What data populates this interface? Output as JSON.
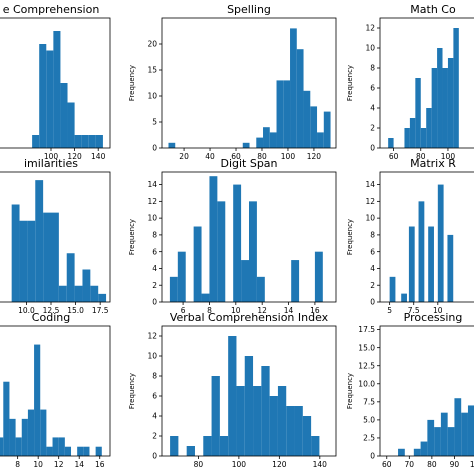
{
  "chart_data": [
    {
      "type": "bar",
      "title": "e Comprehension",
      "ylabel": "",
      "xlim": [
        50,
        150
      ],
      "ylim": [
        0,
        20
      ],
      "xticks": [
        {
          "v": 100,
          "l": "100"
        },
        {
          "v": 120,
          "l": "120"
        },
        {
          "v": 140,
          "l": "140"
        }
      ],
      "yticks": [],
      "bins": [
        [
          84,
          90,
          2
        ],
        [
          90,
          96,
          16
        ],
        [
          96,
          102,
          15
        ],
        [
          102,
          108,
          18
        ],
        [
          108,
          114,
          10
        ],
        [
          114,
          120,
          7
        ],
        [
          120,
          126,
          2
        ],
        [
          126,
          132,
          2
        ],
        [
          132,
          138,
          2
        ],
        [
          138,
          144,
          2
        ]
      ]
    },
    {
      "type": "bar",
      "title": "Spelling",
      "ylabel": "Frequency",
      "xlim": [
        3,
        137
      ],
      "ylim": [
        0,
        25
      ],
      "xticks": [
        {
          "v": 20,
          "l": "20"
        },
        {
          "v": 40,
          "l": "40"
        },
        {
          "v": 60,
          "l": "60"
        },
        {
          "v": 80,
          "l": "80"
        },
        {
          "v": 100,
          "l": "100"
        },
        {
          "v": 120,
          "l": "120"
        }
      ],
      "yticks": [
        {
          "v": 0,
          "l": "0"
        },
        {
          "v": 5,
          "l": "5"
        },
        {
          "v": 10,
          "l": "10"
        },
        {
          "v": 15,
          "l": "15"
        },
        {
          "v": 20,
          "l": "20"
        }
      ],
      "bins": [
        [
          8,
          13.2,
          1
        ],
        [
          65.2,
          70.4,
          1
        ],
        [
          75.6,
          80.8,
          2
        ],
        [
          80.8,
          86,
          4
        ],
        [
          86,
          91.2,
          3
        ],
        [
          91.2,
          96.4,
          13
        ],
        [
          96.4,
          101.6,
          13
        ],
        [
          101.6,
          106.8,
          23
        ],
        [
          106.8,
          112,
          19
        ],
        [
          112,
          117.2,
          11
        ],
        [
          117.2,
          122.4,
          8
        ],
        [
          122.4,
          127.6,
          3
        ],
        [
          127.6,
          132.8,
          7
        ]
      ]
    },
    {
      "type": "bar",
      "title": "Math Co",
      "ylabel": "Frequency",
      "xlim": [
        50,
        128
      ],
      "ylim": [
        0,
        13
      ],
      "xticks": [
        {
          "v": 60,
          "l": "60"
        },
        {
          "v": 80,
          "l": "80"
        },
        {
          "v": 100,
          "l": "100"
        }
      ],
      "yticks": [
        {
          "v": 0,
          "l": "0"
        },
        {
          "v": 2,
          "l": "2"
        },
        {
          "v": 4,
          "l": "4"
        },
        {
          "v": 6,
          "l": "6"
        },
        {
          "v": 8,
          "l": "8"
        },
        {
          "v": 10,
          "l": "10"
        },
        {
          "v": 12,
          "l": "12"
        }
      ],
      "bins": [
        [
          56,
          60,
          1
        ],
        [
          68,
          72,
          2
        ],
        [
          72,
          76,
          3
        ],
        [
          76,
          80,
          7
        ],
        [
          80,
          84,
          2
        ],
        [
          84,
          88,
          4
        ],
        [
          88,
          92,
          8
        ],
        [
          92,
          96,
          10
        ],
        [
          96,
          100,
          8
        ],
        [
          100,
          104,
          9
        ],
        [
          104,
          108,
          12
        ]
      ]
    },
    {
      "type": "bar",
      "title": "imilarities",
      "ylabel": "",
      "xlim": [
        6.5,
        18.5
      ],
      "ylim": [
        0,
        16
      ],
      "xticks": [
        {
          "v": 10,
          "l": "10.0"
        },
        {
          "v": 12.5,
          "l": "12.5"
        },
        {
          "v": 15,
          "l": "15.0"
        },
        {
          "v": 17.5,
          "l": "17.5"
        }
      ],
      "yticks": [],
      "bins": [
        [
          8.5,
          9.3,
          12
        ],
        [
          9.3,
          10.1,
          10
        ],
        [
          10.1,
          10.9,
          10
        ],
        [
          10.9,
          11.7,
          15
        ],
        [
          11.7,
          12.5,
          11
        ],
        [
          12.5,
          13.3,
          11
        ],
        [
          13.3,
          14.1,
          2
        ],
        [
          14.1,
          14.9,
          6
        ],
        [
          14.9,
          15.7,
          2
        ],
        [
          15.7,
          16.5,
          4
        ],
        [
          16.5,
          17.3,
          2
        ],
        [
          17.3,
          18.1,
          1
        ]
      ]
    },
    {
      "type": "bar",
      "title": "Digit Span",
      "ylabel": "Frequency",
      "xlim": [
        4.4,
        17.6
      ],
      "ylim": [
        0,
        15.5
      ],
      "xticks": [
        {
          "v": 6,
          "l": "6"
        },
        {
          "v": 8,
          "l": "8"
        },
        {
          "v": 10,
          "l": "10"
        },
        {
          "v": 12,
          "l": "12"
        },
        {
          "v": 14,
          "l": "14"
        },
        {
          "v": 16,
          "l": "16"
        }
      ],
      "yticks": [
        {
          "v": 0,
          "l": "0"
        },
        {
          "v": 2,
          "l": "2"
        },
        {
          "v": 4,
          "l": "4"
        },
        {
          "v": 6,
          "l": "6"
        },
        {
          "v": 8,
          "l": "8"
        },
        {
          "v": 10,
          "l": "10"
        },
        {
          "v": 12,
          "l": "12"
        },
        {
          "v": 14,
          "l": "14"
        }
      ],
      "bins": [
        [
          5,
          5.6,
          3
        ],
        [
          5.6,
          6.2,
          6
        ],
        [
          6.8,
          7.4,
          9
        ],
        [
          7.4,
          8,
          1
        ],
        [
          8,
          8.6,
          15
        ],
        [
          8.6,
          9.2,
          12
        ],
        [
          9.8,
          10.4,
          14
        ],
        [
          10.4,
          11,
          5
        ],
        [
          11,
          11.6,
          12
        ],
        [
          11.6,
          12.2,
          3
        ],
        [
          14.2,
          14.8,
          5
        ],
        [
          14.8,
          15.4,
          0
        ],
        [
          15.4,
          16,
          0
        ],
        [
          16,
          16.6,
          6
        ]
      ]
    },
    {
      "type": "bar",
      "title": "Matrix R",
      "ylabel": "Frequency",
      "xlim": [
        4,
        15
      ],
      "ylim": [
        0,
        15.5
      ],
      "xticks": [
        {
          "v": 5,
          "l": "5"
        },
        {
          "v": 7.5,
          "l": "7.5"
        },
        {
          "v": 10,
          "l": "10"
        }
      ],
      "yticks": [
        {
          "v": 0,
          "l": "0"
        },
        {
          "v": 2,
          "l": "2"
        },
        {
          "v": 4,
          "l": "4"
        },
        {
          "v": 6,
          "l": "6"
        },
        {
          "v": 8,
          "l": "8"
        },
        {
          "v": 10,
          "l": "10"
        },
        {
          "v": 12,
          "l": "12"
        },
        {
          "v": 14,
          "l": "14"
        }
      ],
      "bins": [
        [
          5,
          5.6,
          3
        ],
        [
          6.2,
          6.8,
          1
        ],
        [
          7,
          7.6,
          9
        ],
        [
          8,
          8.6,
          12
        ],
        [
          9,
          9.6,
          9
        ],
        [
          10,
          10.6,
          14
        ],
        [
          11,
          11.6,
          8
        ]
      ]
    },
    {
      "type": "bar",
      "title": "Coding",
      "ylabel": "",
      "xlim": [
        5.5,
        17
      ],
      "ylim": [
        0,
        14
      ],
      "xticks": [
        {
          "v": 8,
          "l": "8"
        },
        {
          "v": 10,
          "l": "10"
        },
        {
          "v": 12,
          "l": "12"
        },
        {
          "v": 14,
          "l": "14"
        },
        {
          "v": 16,
          "l": "16"
        }
      ],
      "yticks": [],
      "bins": [
        [
          6,
          6.6,
          2
        ],
        [
          6.6,
          7.2,
          8
        ],
        [
          7.2,
          7.8,
          4
        ],
        [
          7.8,
          8.4,
          2
        ],
        [
          8.4,
          9,
          4
        ],
        [
          9,
          9.6,
          5
        ],
        [
          9.6,
          10.2,
          12
        ],
        [
          10.2,
          10.8,
          5
        ],
        [
          10.8,
          11.4,
          1
        ],
        [
          11.4,
          12,
          2
        ],
        [
          12,
          12.6,
          2
        ],
        [
          12.6,
          13.2,
          1
        ],
        [
          13.2,
          13.8,
          0
        ],
        [
          13.8,
          14.4,
          1
        ],
        [
          14.4,
          15,
          1
        ],
        [
          15,
          15.6,
          0
        ],
        [
          15.6,
          16.2,
          1
        ]
      ]
    },
    {
      "type": "bar",
      "title": "Verbal Comprehension Index",
      "ylabel": "Frequency",
      "xlim": [
        62,
        148
      ],
      "ylim": [
        0,
        13
      ],
      "xticks": [
        {
          "v": 80,
          "l": "80"
        },
        {
          "v": 100,
          "l": "100"
        },
        {
          "v": 120,
          "l": "120"
        },
        {
          "v": 140,
          "l": "140"
        }
      ],
      "yticks": [
        {
          "v": 0,
          "l": "0"
        },
        {
          "v": 2,
          "l": "2"
        },
        {
          "v": 4,
          "l": "4"
        },
        {
          "v": 6,
          "l": "6"
        },
        {
          "v": 8,
          "l": "8"
        },
        {
          "v": 10,
          "l": "10"
        },
        {
          "v": 12,
          "l": "12"
        }
      ],
      "bins": [
        [
          66,
          70.1,
          2
        ],
        [
          70.1,
          74.2,
          0
        ],
        [
          74.2,
          78.3,
          1
        ],
        [
          78.3,
          82.4,
          0
        ],
        [
          82.4,
          86.5,
          2
        ],
        [
          86.5,
          90.6,
          8
        ],
        [
          90.6,
          94.7,
          2
        ],
        [
          94.7,
          98.8,
          12
        ],
        [
          98.8,
          102.9,
          7
        ],
        [
          102.9,
          107,
          10
        ],
        [
          107,
          111.1,
          7
        ],
        [
          111.1,
          115.2,
          9
        ],
        [
          115.2,
          119.3,
          6
        ],
        [
          119.3,
          123.4,
          7
        ],
        [
          123.4,
          127.5,
          5
        ],
        [
          127.5,
          131.6,
          5
        ],
        [
          131.6,
          135.7,
          4
        ],
        [
          135.7,
          139.8,
          2
        ]
      ]
    },
    {
      "type": "bar",
      "title": "Processing",
      "ylabel": "Frequency",
      "xlim": [
        57,
        104
      ],
      "ylim": [
        0,
        18
      ],
      "xticks": [
        {
          "v": 60,
          "l": "60"
        },
        {
          "v": 70,
          "l": "70"
        },
        {
          "v": 80,
          "l": "80"
        },
        {
          "v": 90,
          "l": "90"
        },
        {
          "v": 100,
          "l": "100"
        }
      ],
      "yticks": [
        {
          "v": 0,
          "l": "0"
        },
        {
          "v": 2.5,
          "l": "2.5"
        },
        {
          "v": 5,
          "l": "5.0"
        },
        {
          "v": 7.5,
          "l": "7.5"
        },
        {
          "v": 10,
          "l": "10.0"
        },
        {
          "v": 12.5,
          "l": "12.5"
        },
        {
          "v": 15,
          "l": "15.0"
        },
        {
          "v": 17.5,
          "l": "17.5"
        }
      ],
      "bins": [
        [
          65,
          68,
          1
        ],
        [
          72,
          75,
          1
        ],
        [
          75,
          78,
          2
        ],
        [
          78,
          81,
          5
        ],
        [
          81,
          84,
          4
        ],
        [
          84,
          87,
          6
        ],
        [
          87,
          90,
          4
        ],
        [
          90,
          93,
          8
        ],
        [
          93,
          96,
          6
        ],
        [
          96,
          99,
          7
        ],
        [
          99,
          102,
          8
        ]
      ]
    }
  ],
  "colors": {
    "bar": "#1f77b4",
    "axis": "#000000",
    "background": "#ffffff"
  }
}
